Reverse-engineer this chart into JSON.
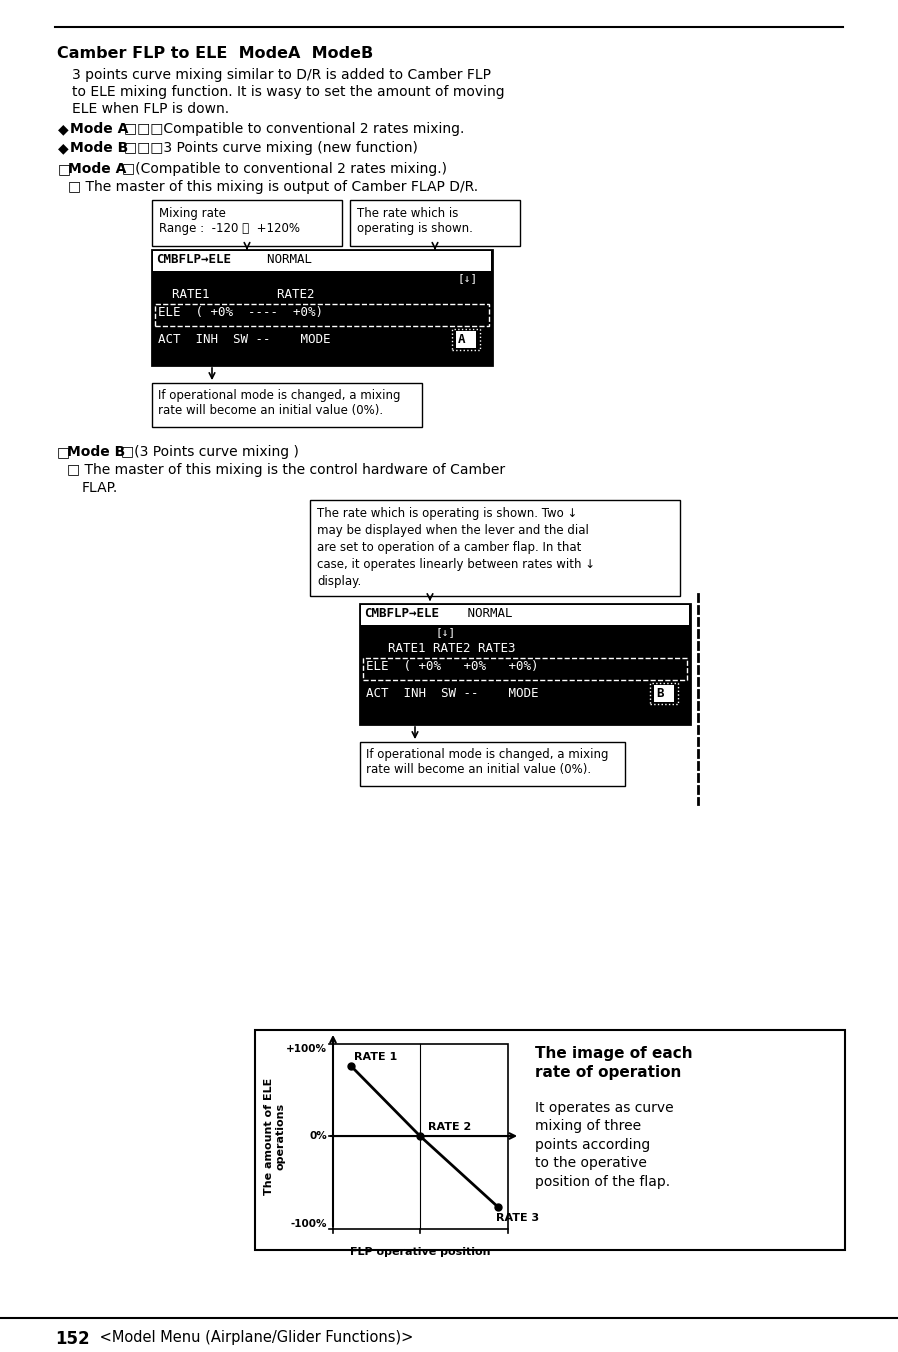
{
  "page_num": "152",
  "footer_text": "<Model Menu (Airplane/Glider Functions)>",
  "title": "Camber FLP to ELE  ModeA  ModeB",
  "intro_text": [
    "3 points curve mixing similar to D/R is added to Camber FLP",
    "to ELE mixing function. It is wasy to set the amount of moving",
    "ELE when FLP is down."
  ],
  "callout1_line1": "Mixing rate",
  "callout1_line2": "Range :  -120 〜  +120%",
  "callout2_line1": "The rate which is",
  "callout2_line2": "operating is shown.",
  "callout3_line1": "If operational mode is changed, a mixing",
  "callout3_line2": "rate will become an initial value (0%).",
  "callout4_lines": [
    "The rate which is operating is shown. Two ↓",
    "may be displayed when the lever and the dial",
    "are set to operation of a camber flap. In that",
    "case, it operates linearly between rates with ↓",
    "display."
  ],
  "callout5_line1": "If operational mode is changed, a mixing",
  "callout5_line2": "rate will become an initial value (0%).",
  "graph_title": "The image of each\nrate of operation",
  "graph_desc": "It operates as curve\nmixing of three\npoints according\nto the operative\nposition of the flap.",
  "graph_ylabel": "The amount of ELE\noperations",
  "graph_xlabel": "FLP operative position",
  "bg_color": "#ffffff"
}
